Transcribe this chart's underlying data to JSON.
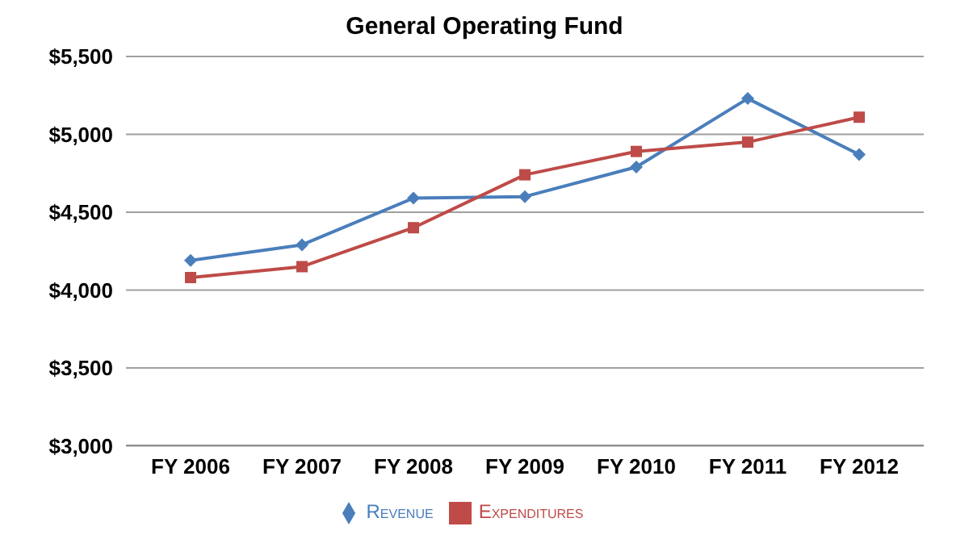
{
  "chart_data": {
    "type": "line",
    "title": "General Operating Fund",
    "categories": [
      "FY 2006",
      "FY 2007",
      "FY 2008",
      "FY 2009",
      "FY 2010",
      "FY 2011",
      "FY 2012"
    ],
    "series": [
      {
        "name": "Revenue",
        "color": "#4a7ebb",
        "marker": "diamond",
        "values": [
          4190,
          4290,
          4590,
          4600,
          4790,
          5230,
          4870
        ]
      },
      {
        "name": "Expenditures",
        "color": "#be4b48",
        "marker": "square",
        "values": [
          4080,
          4150,
          4400,
          4740,
          4890,
          4950,
          5110
        ]
      }
    ],
    "ylim": [
      3000,
      5500
    ],
    "yticks": [
      {
        "value": 3000,
        "label": "$3,000"
      },
      {
        "value": 3500,
        "label": "$3,500"
      },
      {
        "value": 4000,
        "label": "$4,000"
      },
      {
        "value": 4500,
        "label": "$4,500"
      },
      {
        "value": 5000,
        "label": "$5,000"
      },
      {
        "value": 5500,
        "label": "$5,500"
      }
    ],
    "grid": "y",
    "legend": "bottom"
  }
}
